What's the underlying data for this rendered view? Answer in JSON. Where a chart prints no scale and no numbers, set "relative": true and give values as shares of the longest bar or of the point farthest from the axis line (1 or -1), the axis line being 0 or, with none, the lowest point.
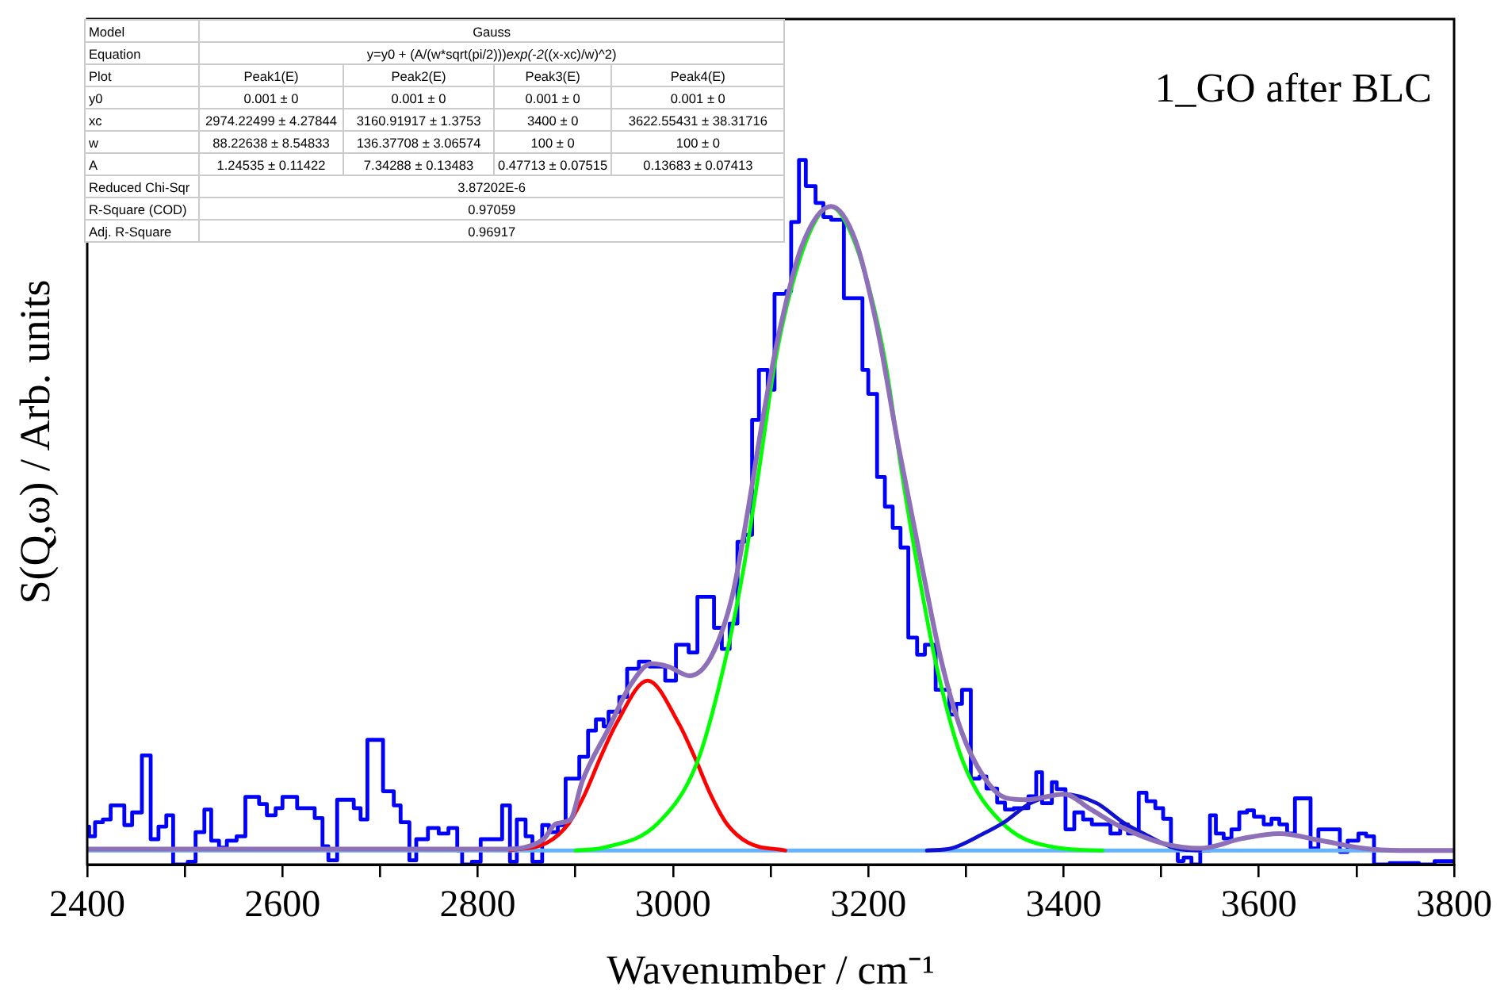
{
  "chart_data": {
    "type": "line",
    "relative": true,
    "xlabel": "Wavenumber / cm⁻¹",
    "ylabel": "S(Q,ω) / Arb. units",
    "xlim": [
      2400,
      3800
    ],
    "xticks": [
      2400,
      {
        "value": 2500,
        "label": null
      },
      2600,
      {
        "value": 2700,
        "label": null
      },
      2800,
      {
        "value": 2900,
        "label": null
      },
      3000,
      {
        "value": 3100,
        "label": null
      },
      3200,
      {
        "value": 3300,
        "label": null
      },
      3400,
      {
        "value": 3500,
        "label": null
      },
      3600,
      {
        "value": 3700,
        "label": null
      },
      3800
    ],
    "tick_labels": "x",
    "annotations": [
      "1_GO after BLC",
      "Model",
      "Gauss",
      "Equation",
      "y=y0 + (A/(w*sqrt(pi/2)))*exp(-2*((x-xc)/w)^2)",
      "Plot",
      "Peak1(E)",
      "Peak2(E)",
      "Peak3(E)",
      "Peak4(E)",
      "y0",
      "0.001 ± 0",
      "0.001 ± 0",
      "0.001 ± 0",
      "0.001 ± 0",
      "xc",
      "2974.22499 ± 4.27844",
      "3160.91917 ± 1.3753",
      "3400 ± 0",
      "3622.55431 ± 38.31716",
      "w",
      "88.22638 ± 8.54833",
      "136.37708 ± 3.06574",
      "100 ± 0",
      "100 ± 0",
      "A",
      "1.24535 ± 0.11422",
      "7.34288 ± 0.13483",
      "0.47713 ± 0.07515",
      "0.13683 ± 0.07413",
      "Reduced Chi-Sqr",
      "3.87202E-6",
      "R-Square (COD)",
      "0.97059",
      "Adj. R-Square",
      "0.96917"
    ],
    "series": [
      {
        "type": "step",
        "color": "#0000ff",
        "x": [
          2402,
          2408,
          2416,
          2424,
          2438,
          2446,
          2456,
          2465,
          2473,
          2481,
          2488,
          2503,
          2511,
          2520,
          2527,
          2535,
          2543,
          2553,
          2562,
          2576,
          2584,
          2593,
          2600,
          2615,
          2633,
          2641,
          2647,
          2656,
          2673,
          2680,
          2687,
          2703,
          2714,
          2721,
          2730,
          2737,
          2749,
          2760,
          2770,
          2779,
          2784,
          2794,
          2803,
          2825,
          2833,
          2840,
          2849,
          2856,
          2866,
          2873,
          2882,
          2890,
          2904,
          2913,
          2921,
          2929,
          2934,
          2945,
          2953,
          2965,
          2976,
          2992,
          3003,
          3016,
          3025,
          3042,
          3050,
          3058,
          3066,
          3073,
          3081,
          3088,
          3097,
          3104,
          3116,
          3121,
          3129,
          3136,
          3146,
          3154,
          3162,
          3175,
          3194,
          3200,
          3209,
          3217,
          3225,
          3233,
          3241,
          3250,
          3258,
          3269,
          3283,
          3290,
          3296,
          3305,
          3314,
          3321,
          3332,
          3340,
          3349,
          3364,
          3372,
          3378,
          3388,
          3393,
          3402,
          3411,
          3420,
          3429,
          3448,
          3458,
          3466,
          3477,
          3485,
          3494,
          3502,
          3510,
          3517,
          3523,
          3531,
          3540,
          3550,
          3556,
          3564,
          3572,
          3580,
          3588,
          3595,
          3605,
          3613,
          3621,
          3629,
          3637,
          3653,
          3661,
          3683,
          3691,
          3702,
          3710,
          3718,
          3734,
          3764,
          3780,
          3797,
          3800
        ],
        "values": [
          0.054,
          0.04,
          0.06,
          0.064,
          0.084,
          0.056,
          0.074,
          0.155,
          0.036,
          0.054,
          0.07,
          0,
          0.004,
          0.046,
          0.078,
          0.034,
          0.024,
          0.034,
          0.04,
          0.096,
          0.086,
          0.07,
          0.08,
          0.096,
          0.08,
          0.066,
          0.026,
          0.006,
          0.092,
          0.08,
          0.064,
          0.177,
          0.104,
          0.084,
          0.06,
          0.006,
          0.036,
          0.052,
          0.044,
          0.052,
          0.02,
          0,
          0.004,
          0.036,
          0.084,
          0.004,
          0.064,
          0.04,
          0.004,
          0.056,
          0.046,
          0.056,
          0.122,
          0.153,
          0.19,
          0.206,
          0.196,
          0.217,
          0.238,
          0.278,
          0.288,
          0.281,
          0.261,
          0.312,
          0.301,
          0.38,
          0.336,
          0.306,
          0.342,
          0.458,
          0.468,
          0.631,
          0.702,
          0.674,
          0.81,
          0.814,
          0.912,
          1.0,
          0.963,
          0.939,
          0.919,
          0.915,
          0.804,
          0.702,
          0.668,
          0.55,
          0.508,
          0.478,
          0.45,
          0.322,
          0.298,
          0.312,
          0.248,
          0.213,
          0.228,
          0.248,
          0.122,
          0.125,
          0.108,
          0.088,
          0.078,
          0.08,
          0.097,
          0.131,
          0.087,
          0.117,
          0.107,
          0.05,
          0.074,
          0.064,
          0.057,
          0.044,
          0.057,
          0.044,
          0.102,
          0.09,
          0.08,
          0.065,
          0.023,
          0.005,
          0.01,
          0,
          0.02,
          0.07,
          0.044,
          0.037,
          0.05,
          0.074,
          0.077,
          0.068,
          0.057,
          0.065,
          0.057,
          0.044,
          0.094,
          0.023,
          0.05,
          0.018,
          0.034,
          0.044,
          0.04,
          0,
          0.002,
          0,
          0.005,
          0.005
        ]
      },
      {
        "type": "line",
        "color": "#66b3ff",
        "x": [
          2400,
          3800
        ],
        "values": [
          0.02,
          0.02
        ]
      },
      {
        "type": "line",
        "color": "#ff0000",
        "x": [
          2833,
          2871,
          2893,
          2909,
          2926,
          2942,
          2974,
          3006,
          3022,
          3039,
          3055,
          3077,
          3115
        ],
        "values": [
          0.02,
          0.031,
          0.058,
          0.098,
          0.153,
          0.2,
          0.261,
          0.2,
          0.153,
          0.098,
          0.058,
          0.031,
          0.02
        ]
      },
      {
        "type": "line",
        "color": "#00ff00",
        "x": [
          2900,
          2929,
          2984,
          3025,
          3052,
          3072,
          3088,
          3104,
          3121,
          3143,
          3161,
          3179,
          3201,
          3218,
          3234,
          3251,
          3270,
          3297,
          3338,
          3393,
          3440
        ],
        "values": [
          0.02,
          0.024,
          0.058,
          0.146,
          0.281,
          0.418,
          0.559,
          0.709,
          0.817,
          0.906,
          0.934,
          0.906,
          0.817,
          0.709,
          0.559,
          0.418,
          0.281,
          0.146,
          0.058,
          0.024,
          0.02
        ]
      },
      {
        "type": "line",
        "color": "#1010d0",
        "x": [
          3260,
          3285,
          3318,
          3339,
          3366,
          3400,
          3434,
          3461,
          3482,
          3515,
          3540
        ],
        "values": [
          0.02,
          0.023,
          0.044,
          0.06,
          0.087,
          0.1,
          0.087,
          0.06,
          0.044,
          0.023,
          0.02
        ]
      },
      {
        "type": "line",
        "color": "#8e70b8",
        "x": [
          2400,
          2830,
          2847,
          2868,
          2880,
          2895,
          2907,
          2934,
          2956,
          2978,
          2995,
          3017,
          3039,
          3061,
          3077,
          3093,
          3110,
          3132,
          3162,
          3187,
          3209,
          3231,
          3253,
          3275,
          3296,
          3318,
          3340,
          3362,
          3401,
          3426,
          3458,
          3502,
          3540,
          3583,
          3621,
          3664,
          3707,
          3745,
          3800
        ],
        "values": [
          0.022,
          0.022,
          0.024,
          0.037,
          0.058,
          0.064,
          0.118,
          0.193,
          0.254,
          0.285,
          0.281,
          0.268,
          0.295,
          0.383,
          0.505,
          0.641,
          0.763,
          0.878,
          0.934,
          0.885,
          0.763,
          0.593,
          0.437,
          0.288,
          0.187,
          0.125,
          0.095,
          0.092,
          0.1,
          0.08,
          0.054,
          0.03,
          0.023,
          0.037,
          0.044,
          0.034,
          0.023,
          0.02,
          0.02
        ]
      }
    ]
  }
}
